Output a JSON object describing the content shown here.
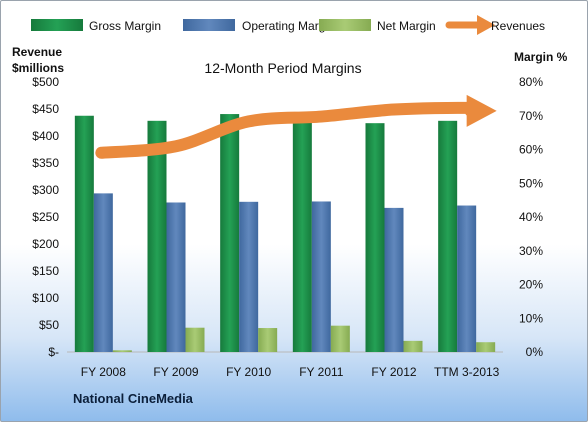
{
  "chart_data": {
    "type": "bar",
    "title": "12-Month Period Margins",
    "ylabel_left": [
      "Revenue",
      "$millions"
    ],
    "ylabel_right": "Margin %",
    "categories": [
      "FY 2008",
      "FY 2009",
      "FY 2010",
      "FY 2011",
      "FY 2012",
      "TTM 3-2013"
    ],
    "left_ticks": [
      "$-",
      "$50",
      "$100",
      "$150",
      "$200",
      "$250",
      "$300",
      "$350",
      "$400",
      "$450",
      "$500"
    ],
    "right_ticks": [
      "0%",
      "10%",
      "20%",
      "30%",
      "40%",
      "50%",
      "60%",
      "70%",
      "80%"
    ],
    "ylim_left": [
      0,
      500
    ],
    "ylim_right": [
      0,
      80
    ],
    "series": [
      {
        "name": "Gross Margin",
        "axis": "right",
        "type": "bar",
        "values": [
          70,
          68.5,
          70.5,
          69.5,
          67.8,
          68.5
        ]
      },
      {
        "name": "Operating Margin",
        "axis": "right",
        "type": "bar",
        "values": [
          47,
          44.3,
          44.5,
          44.6,
          42.7,
          43.4
        ]
      },
      {
        "name": "Net Margin",
        "axis": "right",
        "type": "bar",
        "values": [
          0.5,
          7.2,
          7.1,
          7.8,
          3.3,
          2.9
        ]
      },
      {
        "name": "Revenues",
        "axis": "left",
        "type": "line",
        "values": [
          369,
          381,
          427,
          436,
          449,
          452
        ]
      }
    ],
    "colors": {
      "gross": "#1f8a4a",
      "operating": "#4f77ac",
      "net": "#97bc62",
      "revenue": "#ea8a3d"
    },
    "grid": false,
    "legend_position": "top"
  },
  "footer": {
    "company": "National CineMedia"
  }
}
